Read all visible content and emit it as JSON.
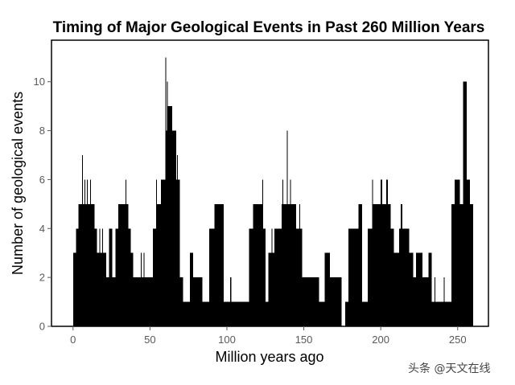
{
  "chart_data": {
    "type": "bar",
    "title": "Timing of Major Geological Events in Past 260 Million Years",
    "xlabel": "Million years ago",
    "ylabel": "Number of geological events",
    "xlim": [
      -14,
      270
    ],
    "ylim": [
      0,
      11.7
    ],
    "xticks": [
      0,
      50,
      100,
      150,
      200,
      250
    ],
    "yticks": [
      0,
      2,
      4,
      6,
      8,
      10
    ],
    "grid": false,
    "bin_edges": [
      0,
      2,
      3.5,
      6,
      6.5,
      7.5,
      8,
      9,
      9.5,
      11,
      11.5,
      14,
      15.5,
      17,
      17.5,
      19,
      19.5,
      21.5,
      23.5,
      25.5,
      27.5,
      29.5,
      34,
      34.5,
      36,
      37.5,
      39,
      44,
      44.5,
      46,
      46.5,
      52,
      54,
      54.5,
      57,
      60,
      60.5,
      61,
      61.5,
      64.5,
      67,
      67.5,
      68,
      69.5,
      71.5,
      76,
      78,
      84,
      88.5,
      92,
      98,
      102,
      103,
      114.5,
      117,
      123,
      123.5,
      125,
      127,
      129,
      129.5,
      131,
      135.5,
      136,
      136.5,
      139,
      139.5,
      141,
      141.5,
      145,
      147,
      147.5,
      149,
      160,
      163.5,
      167,
      174.5,
      177,
      179,
      185.5,
      188,
      191.5,
      194.5,
      195,
      200,
      201,
      203.5,
      204.5,
      206.5,
      208.5,
      212,
      213,
      214,
      218.5,
      221,
      223,
      227,
      231,
      233,
      235,
      235.5,
      241,
      241.5,
      246,
      248,
      251.5,
      253.5,
      256,
      258,
      260
    ],
    "counts": [
      3,
      4,
      5,
      7,
      5,
      6,
      5,
      6,
      5,
      6,
      5,
      4,
      3,
      4,
      3,
      4,
      3,
      2,
      4,
      2,
      4,
      5,
      6,
      5,
      4,
      3,
      2,
      3,
      2,
      3,
      2,
      4,
      6,
      5,
      6,
      11,
      8,
      10,
      9,
      8,
      6,
      7,
      6,
      2,
      1,
      3,
      2,
      1,
      4,
      5,
      1,
      2,
      1,
      4,
      5,
      6,
      4,
      1,
      3,
      4,
      3,
      4,
      5,
      6,
      5,
      8,
      5,
      6,
      5,
      4,
      5,
      4,
      2,
      1,
      3,
      2,
      0,
      1,
      4,
      5,
      1,
      4,
      6,
      5,
      6,
      5,
      6,
      5,
      4,
      3,
      4,
      5,
      4,
      3,
      2,
      3,
      2,
      3,
      1,
      2,
      1,
      2,
      1,
      5,
      6,
      5,
      10,
      6,
      5
    ]
  },
  "colors": {
    "bars": "#000000",
    "frame": "#000000",
    "tick_labels": "#595959"
  },
  "watermark": "头条 @天文在线"
}
